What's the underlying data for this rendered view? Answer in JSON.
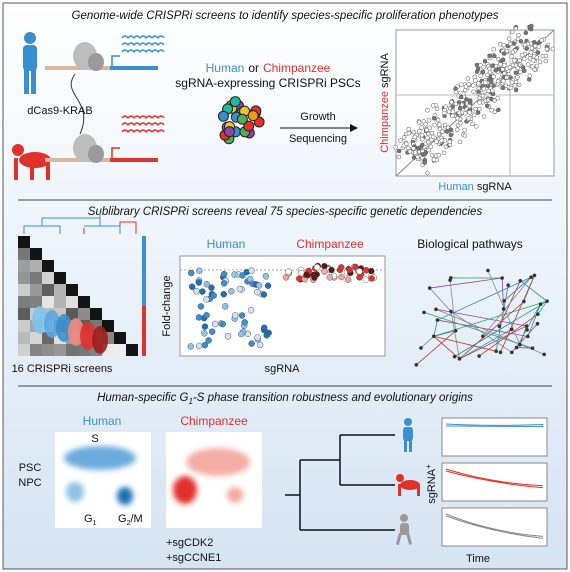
{
  "section1": {
    "title": "Genome-wide CRISPRi screens to identify species-specific proliferation phenotypes",
    "protein_label": "dCas9-KRAB",
    "cell_lines": {
      "human": "Human",
      "or": "or",
      "chimpanzee": "Chimpanzee",
      "description": "sgRNA-expressing CRISPRi PSCs"
    },
    "steps": [
      "Growth",
      "Sequencing"
    ],
    "scatter": {
      "y_label": {
        "species": "Chimpanzee",
        "text": "sgRNA"
      },
      "x_label": {
        "species": "Human",
        "text": "sgRNA"
      }
    }
  },
  "section2": {
    "title": "Sublibrary CRISPRi screens reveal 75 species-specific genetic dependencies",
    "screens_label": "16 CRISPRi screens",
    "plot": {
      "human": "Human",
      "chimpanzee": "Chimpanzee",
      "y_label": "Fold-change",
      "x_label": "sgRNA"
    },
    "network_label": "Biological pathways"
  },
  "section3": {
    "title": {
      "before": "Human-specific G",
      "subscript": "1",
      "after": "-S phase transition robustness and evolutionary origins"
    },
    "human": "Human",
    "chimpanzee": "Chimpanzee",
    "s_phase": "S",
    "cell_types": [
      "PSC",
      "NPC"
    ],
    "g1": {
      "letter": "G",
      "subscript": "1"
    },
    "g2m": {
      "letter": "G",
      "subscript": "2",
      "rest": "/M"
    },
    "perturbations": [
      "+sgCDK2",
      "+sgCCNE1"
    ],
    "y_label": {
      "text": "sgRNA",
      "superscript": "+"
    },
    "x_label": "Time"
  }
}
